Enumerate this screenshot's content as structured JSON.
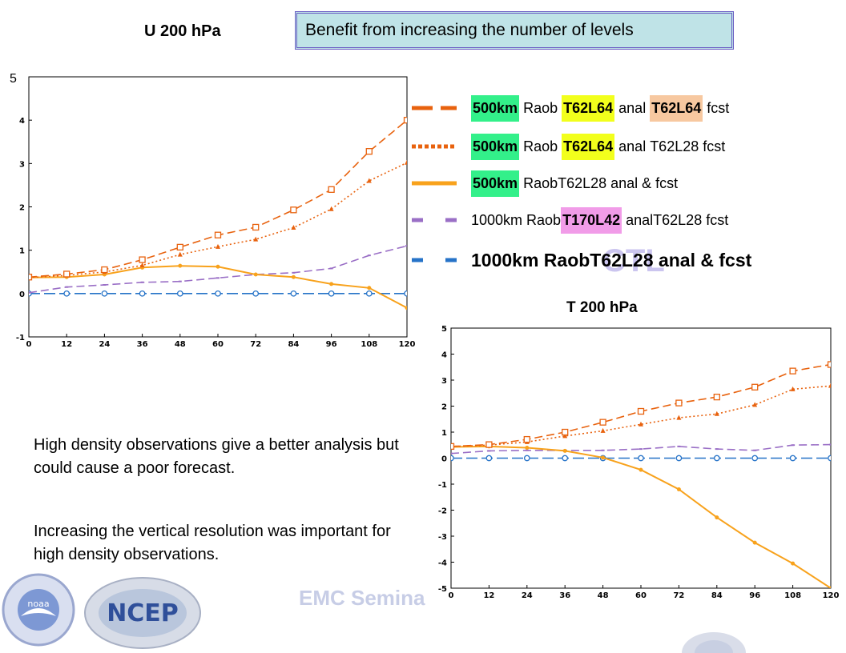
{
  "titles": {
    "u": "U 200 hPa",
    "t": "T 200 hPa",
    "banner": "Benefit from increasing the number of levels",
    "u_top_tick_fix": "5",
    "ctl_watermark": "CTL"
  },
  "legend": [
    {
      "color": "#e8620e",
      "style": "long-dash",
      "parts": [
        {
          "text": "500km",
          "bold": true,
          "hl": "green"
        },
        {
          "text": " Raob ",
          "bold": false,
          "hl": ""
        },
        {
          "text": "T62L64",
          "bold": true,
          "hl": "yellow"
        },
        {
          "text": " anal ",
          "bold": false,
          "hl": ""
        },
        {
          "text": "T62L64",
          "bold": true,
          "hl": "peach"
        },
        {
          "text": " fcst",
          "bold": false,
          "hl": ""
        }
      ]
    },
    {
      "color": "#e8620e",
      "style": "dotted",
      "parts": [
        {
          "text": "500km",
          "bold": true,
          "hl": "green"
        },
        {
          "text": " Raob ",
          "bold": false,
          "hl": ""
        },
        {
          "text": "T62L64",
          "bold": true,
          "hl": "yellow"
        },
        {
          "text": " anal T62L28 fcst",
          "bold": false,
          "hl": ""
        }
      ]
    },
    {
      "color": "#f8a21c",
      "style": "solid",
      "parts": [
        {
          "text": "500km",
          "bold": true,
          "hl": "green"
        },
        {
          "text": " RaobT62L28 anal & fcst",
          "bold": false,
          "hl": ""
        }
      ]
    },
    {
      "color": "#9a6fc6",
      "style": "short-dash",
      "parts": [
        {
          "text": "1000km Raob",
          "bold": false,
          "hl": ""
        },
        {
          "text": "T170L42",
          "bold": true,
          "hl": "pink"
        },
        {
          "text": " analT62L28 fcst",
          "bold": false,
          "hl": ""
        }
      ]
    },
    {
      "color": "#2673c8",
      "style": "short-dash",
      "parts": [
        {
          "text": "1000km RaobT62L28 anal & fcst",
          "bold": true,
          "hl": "",
          "big": true
        }
      ]
    }
  ],
  "text": {
    "para1": "High density observations give a better analysis but could cause a poor forecast.",
    "para2": "Increasing the vertical resolution was important for high density observations.",
    "seminar": "EMC Semina",
    "ncep": "NCEP",
    "noaa": "noaa"
  },
  "chart_data": [
    {
      "type": "line",
      "title": "U 200 hPa",
      "x": [
        0,
        12,
        24,
        36,
        48,
        60,
        72,
        84,
        96,
        108,
        120
      ],
      "xlim": [
        0,
        120
      ],
      "ylim": [
        -1,
        5
      ],
      "yticks": [
        -1,
        0,
        1,
        2,
        3,
        4
      ],
      "series": [
        {
          "name": "500km Raob T62L64 anal T62L64 fcst",
          "color": "#e8620e",
          "dash": "10,5",
          "marker": "square",
          "values": [
            0.38,
            0.45,
            0.55,
            0.78,
            1.07,
            1.35,
            1.53,
            1.93,
            2.4,
            3.28,
            4.0
          ]
        },
        {
          "name": "500km Raob T62L64 anal T62L28 fcst",
          "color": "#e8620e",
          "dash": "2,3",
          "marker": "triangle",
          "values": [
            0.37,
            0.42,
            0.5,
            0.65,
            0.9,
            1.08,
            1.25,
            1.52,
            1.95,
            2.6,
            3.02
          ]
        },
        {
          "name": "500km RaobT62L28 anal & fcst",
          "color": "#f8a21c",
          "dash": "",
          "marker": "dot",
          "values": [
            0.37,
            0.38,
            0.44,
            0.6,
            0.64,
            0.62,
            0.44,
            0.38,
            0.22,
            0.13,
            -0.33
          ]
        },
        {
          "name": "1000km RaobT170L42 analT62L28 fcst",
          "color": "#9a6fc6",
          "dash": "10,5",
          "marker": "tick",
          "values": [
            0.02,
            0.15,
            0.2,
            0.26,
            0.28,
            0.36,
            0.44,
            0.48,
            0.58,
            0.88,
            1.1
          ]
        },
        {
          "name": "1000km RaobT62L28 anal & fcst",
          "color": "#2673c8",
          "dash": "14,5",
          "marker": "circle",
          "values": [
            0,
            0,
            0,
            0,
            0,
            0,
            0,
            0,
            0,
            0,
            0
          ]
        }
      ]
    },
    {
      "type": "line",
      "title": "T 200 hPa",
      "x": [
        0,
        12,
        24,
        36,
        48,
        60,
        72,
        84,
        96,
        108,
        120
      ],
      "xlim": [
        0,
        120
      ],
      "ylim": [
        -5,
        5
      ],
      "yticks": [
        -5,
        -4,
        -3,
        -2,
        -1,
        0,
        1,
        2,
        3,
        4,
        5
      ],
      "series": [
        {
          "name": "500km Raob T62L64 anal T62L64 fcst",
          "color": "#e8620e",
          "dash": "10,5",
          "marker": "square",
          "values": [
            0.45,
            0.52,
            0.72,
            1.0,
            1.38,
            1.8,
            2.12,
            2.35,
            2.73,
            3.35,
            3.6
          ]
        },
        {
          "name": "500km Raob T62L64 anal T62L28 fcst",
          "color": "#e8620e",
          "dash": "2,3",
          "marker": "triangle",
          "values": [
            0.45,
            0.5,
            0.62,
            0.85,
            1.05,
            1.3,
            1.55,
            1.7,
            2.05,
            2.65,
            2.78
          ]
        },
        {
          "name": "500km RaobT62L28 anal & fcst",
          "color": "#f8a21c",
          "dash": "",
          "marker": "dot",
          "values": [
            0.43,
            0.45,
            0.4,
            0.28,
            0.02,
            -0.45,
            -1.2,
            -2.28,
            -3.25,
            -4.05,
            -5.0
          ]
        },
        {
          "name": "1000km RaobT170L42 analT62L28 fcst",
          "color": "#9a6fc6",
          "dash": "10,5",
          "marker": "tick",
          "values": [
            0.18,
            0.28,
            0.3,
            0.3,
            0.3,
            0.35,
            0.45,
            0.35,
            0.3,
            0.5,
            0.52
          ]
        },
        {
          "name": "1000km RaobT62L28 anal & fcst",
          "color": "#2673c8",
          "dash": "14,5",
          "marker": "circle",
          "values": [
            0,
            0,
            0,
            0,
            0,
            0,
            0,
            0,
            0,
            0,
            0
          ]
        }
      ]
    }
  ]
}
